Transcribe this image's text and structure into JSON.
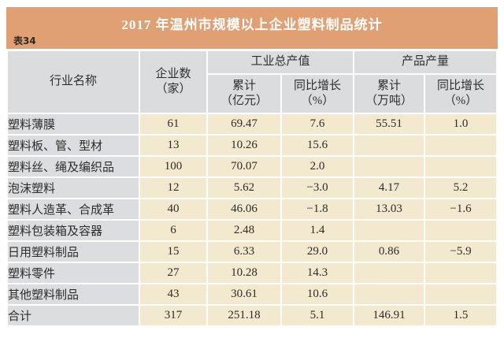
{
  "table_label": "表34",
  "title": "2017 年温州市规模以上企业塑料制品统计",
  "header": {
    "industry": "行业名称",
    "enterprises_line1": "企业数",
    "enterprises_line2": "（家）",
    "output_value_group": "工业总产值",
    "product_output_group": "产品产量",
    "output_cum_line1": "累计",
    "output_cum_line2": "（亿元）",
    "output_yoy_line1": "同比增长",
    "output_yoy_line2": "（%）",
    "qty_cum_line1": "累计",
    "qty_cum_line2": "（万吨）",
    "qty_yoy_line1": "同比增长",
    "qty_yoy_line2": "（%）"
  },
  "rows": [
    {
      "industry": "塑料薄膜",
      "enterprises": "61",
      "output_cum": "69.47",
      "output_yoy": "7.6",
      "qty_cum": "55.51",
      "qty_yoy": "1.0"
    },
    {
      "industry": "塑料板、管、型材",
      "enterprises": "13",
      "output_cum": "10.26",
      "output_yoy": "15.6",
      "qty_cum": "",
      "qty_yoy": ""
    },
    {
      "industry": "塑料丝、绳及编织品",
      "enterprises": "100",
      "output_cum": "70.07",
      "output_yoy": "2.0",
      "qty_cum": "",
      "qty_yoy": ""
    },
    {
      "industry": "泡沫塑料",
      "enterprises": "12",
      "output_cum": "5.62",
      "output_yoy": "−3.0",
      "qty_cum": "4.17",
      "qty_yoy": "5.2"
    },
    {
      "industry": "塑料人造革、合成革",
      "enterprises": "40",
      "output_cum": "46.06",
      "output_yoy": "−1.8",
      "qty_cum": "13.03",
      "qty_yoy": "−1.6"
    },
    {
      "industry": "塑料包装箱及容器",
      "enterprises": "6",
      "output_cum": "2.48",
      "output_yoy": "1.4",
      "qty_cum": "",
      "qty_yoy": ""
    },
    {
      "industry": "日用塑料制品",
      "enterprises": "15",
      "output_cum": "6.33",
      "output_yoy": "29.0",
      "qty_cum": "0.86",
      "qty_yoy": "−5.9"
    },
    {
      "industry": "塑料零件",
      "enterprises": "27",
      "output_cum": "10.28",
      "output_yoy": "14.3",
      "qty_cum": "",
      "qty_yoy": ""
    },
    {
      "industry": "其他塑料制品",
      "enterprises": "43",
      "output_cum": "30.61",
      "output_yoy": "10.6",
      "qty_cum": "",
      "qty_yoy": ""
    },
    {
      "industry": "合计",
      "enterprises": "317",
      "output_cum": "251.18",
      "output_yoy": "5.1",
      "qty_cum": "146.91",
      "qty_yoy": "1.5"
    }
  ],
  "colors": {
    "accent_orange": "#e0a073",
    "header_gray": "#dbdcde",
    "cell_beige": "#f3e9ce",
    "title_text": "#ffffff",
    "body_text": "#2c2c2c"
  }
}
